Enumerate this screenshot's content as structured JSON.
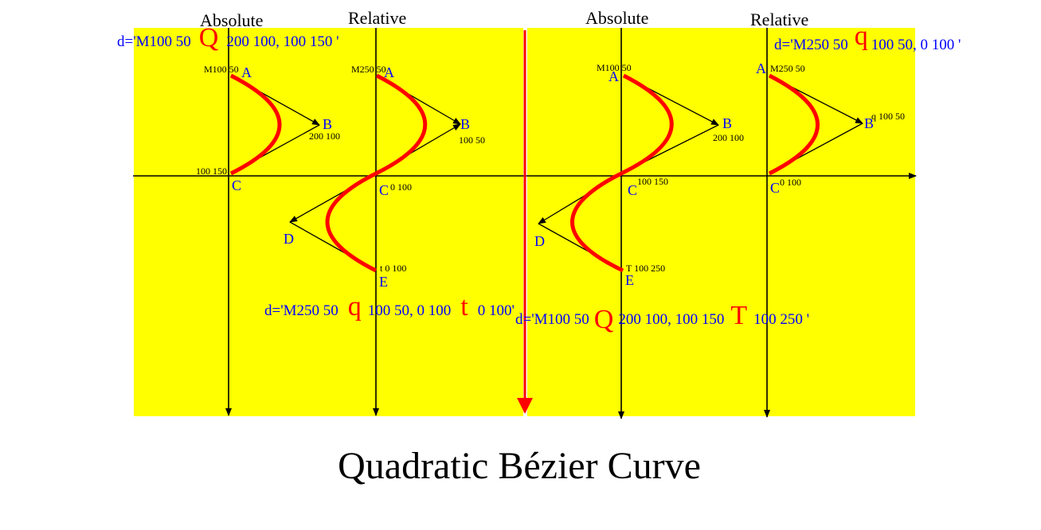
{
  "title": "Quadratic Bézier Curve",
  "colors": {
    "background": "#ffff00",
    "axis": "#000000",
    "curve": "#ff0000",
    "point_label": "#0000ff",
    "command_letter": "#ff0000"
  },
  "headers": {
    "left_absolute": "Absolute",
    "left_relative": "Relative",
    "right_absolute": "Absolute",
    "right_relative": "Relative"
  },
  "left_panel": {
    "absolute": {
      "path_prefix": "d='M100 50",
      "command": "Q",
      "path_suffix": "200 100, 100 150 '",
      "point_a": "A",
      "point_b": "B",
      "point_c": "C",
      "coord_a": "M100 50",
      "coord_b": "200 100",
      "coord_c": "100 150"
    },
    "relative": {
      "path_prefix": "d='M250 50",
      "command_1": "q",
      "path_middle": "100 50,  0 100",
      "command_2": "t",
      "path_suffix": "0 100'",
      "point_a": "A",
      "point_b": "B",
      "point_c": "C",
      "point_d": "D",
      "point_e": "E",
      "coord_a": "M250 50",
      "coord_b": "100 50",
      "coord_c": "0 100",
      "coord_e": "t 0 100"
    }
  },
  "right_panel": {
    "absolute": {
      "path_prefix": "d='M100 50",
      "command_1": "Q",
      "path_middle": "200 100, 100 150",
      "command_2": "T",
      "path_suffix": "100 250 '",
      "point_a": "A",
      "point_b": "B",
      "point_c": "C",
      "point_d": "D",
      "point_e": "E",
      "coord_a": "M100 50",
      "coord_b": "200 100",
      "coord_c": "100 150",
      "coord_e": "T 100 250"
    },
    "relative": {
      "path_prefix": "d='M250 50",
      "command": "q",
      "path_suffix": "100 50,  0 100 '",
      "point_a": "A",
      "point_b": "B",
      "point_c": "C",
      "coord_a": "M250 50",
      "coord_b": "q 100 50",
      "coord_c": "0 100"
    }
  }
}
